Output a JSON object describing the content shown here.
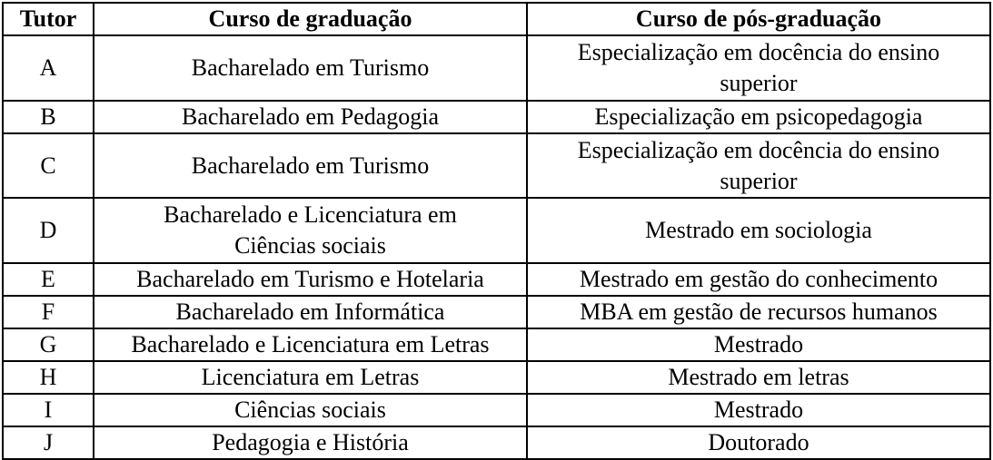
{
  "table": {
    "headers": {
      "tutor": "Tutor",
      "graduacao": "Curso de graduação",
      "pos_graduacao": "Curso de pós-graduação"
    },
    "rows": [
      {
        "tutor": "A",
        "graduacao": "Bacharelado em Turismo",
        "pos_graduacao": "Especialização em docência do ensino\nsuperior"
      },
      {
        "tutor": "B",
        "graduacao": "Bacharelado em Pedagogia",
        "pos_graduacao": "Especialização em psicopedagogia"
      },
      {
        "tutor": "C",
        "graduacao": "Bacharelado em Turismo",
        "pos_graduacao": "Especialização em docência do ensino\nsuperior"
      },
      {
        "tutor": "D",
        "graduacao": "Bacharelado e Licenciatura em\nCiências sociais",
        "pos_graduacao": "Mestrado em sociologia"
      },
      {
        "tutor": "E",
        "graduacao": "Bacharelado em Turismo e Hotelaria",
        "pos_graduacao": "Mestrado em gestão do conhecimento"
      },
      {
        "tutor": "F",
        "graduacao": "Bacharelado em Informática",
        "pos_graduacao": "MBA em gestão de recursos humanos"
      },
      {
        "tutor": "G",
        "graduacao": "Bacharelado e Licenciatura em Letras",
        "pos_graduacao": "Mestrado"
      },
      {
        "tutor": "H",
        "graduacao": "Licenciatura em Letras",
        "pos_graduacao": "Mestrado em letras"
      },
      {
        "tutor": "I",
        "graduacao": "Ciências sociais",
        "pos_graduacao": "Mestrado"
      },
      {
        "tutor": "J",
        "graduacao": "Pedagogia e História",
        "pos_graduacao": "Doutorado"
      }
    ],
    "colors": {
      "text": "#000000",
      "border": "#000000",
      "background": "#ffffff"
    }
  }
}
